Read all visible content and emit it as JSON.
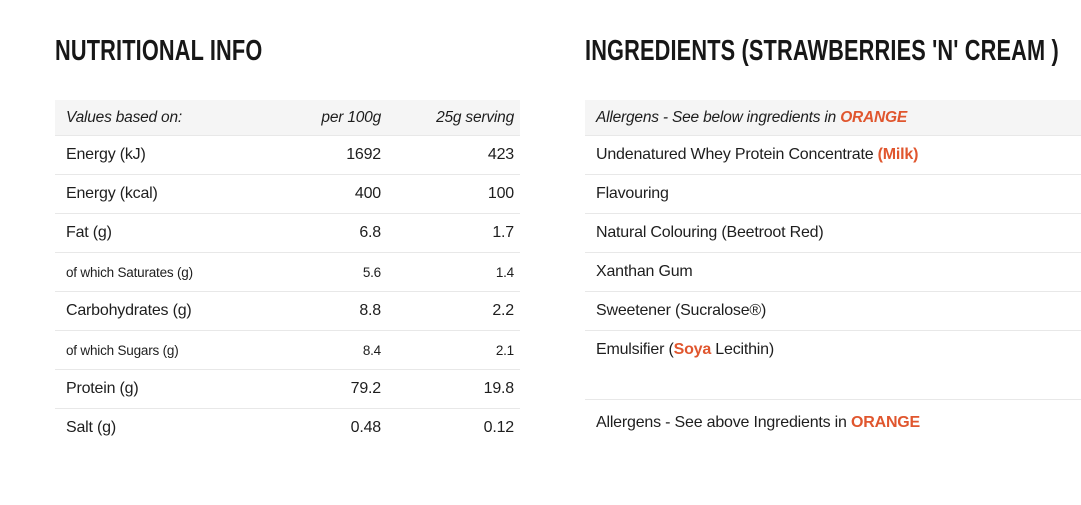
{
  "colors": {
    "accent_orange": "#e0562e",
    "header_row_bg": "#f5f5f5",
    "row_border": "#e8e8e8",
    "text": "#1e1e1e"
  },
  "nutrition": {
    "title": "NUTRITIONAL INFO",
    "header": {
      "label": "Values based on:",
      "per_100g": "per 100g",
      "per_serving": "25g serving"
    },
    "rows": [
      {
        "label": "Energy (kJ)",
        "per_100g": "1692",
        "per_serving": "423",
        "small": false
      },
      {
        "label": "Energy (kcal)",
        "per_100g": "400",
        "per_serving": "100",
        "small": false
      },
      {
        "label": "Fat (g)",
        "per_100g": "6.8",
        "per_serving": "1.7",
        "small": false
      },
      {
        "label": "of which Saturates (g)",
        "per_100g": "5.6",
        "per_serving": "1.4",
        "small": true
      },
      {
        "label": "Carbohydrates (g)",
        "per_100g": "8.8",
        "per_serving": "2.2",
        "small": false
      },
      {
        "label": "of which Sugars (g)",
        "per_100g": "8.4",
        "per_serving": "2.1",
        "small": true
      },
      {
        "label": "Protein (g)",
        "per_100g": "79.2",
        "per_serving": "19.8",
        "small": false
      },
      {
        "label": "Salt (g)",
        "per_100g": "0.48",
        "per_serving": "0.12",
        "small": false
      }
    ]
  },
  "ingredients": {
    "title": "INGREDIENTS (STRAWBERRIES 'N' CREAM )",
    "allergen_note_top": {
      "prefix": "Allergens - See below ingredients in ",
      "highlight": "ORANGE"
    },
    "items": [
      {
        "parts": [
          {
            "text": "Undenatured Whey Protein Concentrate ",
            "orange": false
          },
          {
            "text": "(Milk)",
            "orange": true
          }
        ]
      },
      {
        "parts": [
          {
            "text": "Flavouring",
            "orange": false
          }
        ]
      },
      {
        "parts": [
          {
            "text": "Natural Colouring (Beetroot Red)",
            "orange": false
          }
        ]
      },
      {
        "parts": [
          {
            "text": "Xanthan Gum",
            "orange": false
          }
        ]
      },
      {
        "parts": [
          {
            "text": "Sweetener (Sucralose®)",
            "orange": false
          }
        ]
      },
      {
        "parts": [
          {
            "text": "Emulsifier (",
            "orange": false
          },
          {
            "text": "Soya",
            "orange": true
          },
          {
            "text": " Lecithin)",
            "orange": false
          }
        ]
      }
    ],
    "allergen_note_bottom": {
      "prefix": "Allergens - See above Ingredients in ",
      "highlight": "ORANGE"
    }
  }
}
